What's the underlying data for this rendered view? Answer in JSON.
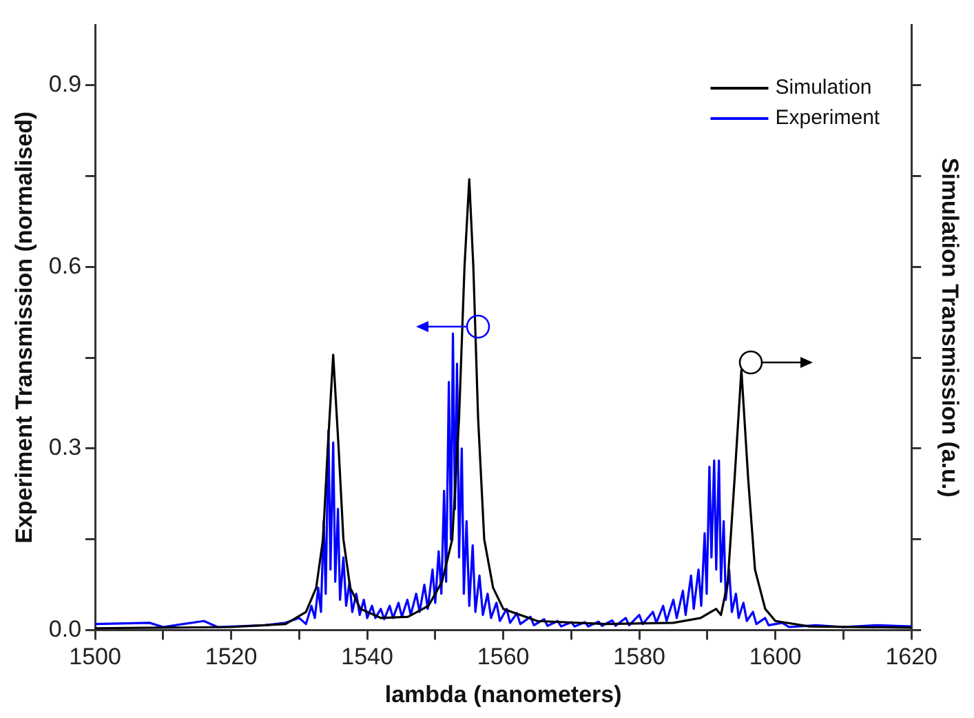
{
  "chart_data": {
    "type": "line",
    "xlabel": "lambda (nanometers)",
    "ylabel": "Experiment Transmission (normalised)",
    "y2label": "Simulation Transmission (a.u.)",
    "xlim": [
      1500,
      1620
    ],
    "xticks": [
      1500,
      {
        "value": 1510,
        "label": null
      },
      1520,
      {
        "value": 1530,
        "label": null
      },
      1540,
      {
        "value": 1550,
        "label": null
      },
      1560,
      {
        "value": 1570,
        "label": null
      },
      1580,
      {
        "value": 1590,
        "label": null
      },
      1600,
      {
        "value": 1610,
        "label": null
      },
      1620
    ],
    "ylim": [
      0,
      1.0
    ],
    "yticks": [
      {
        "value": 0,
        "label": "0.0"
      },
      {
        "value": 0.15,
        "label": null
      },
      {
        "value": 0.3,
        "label": "0.3"
      },
      {
        "value": 0.45,
        "label": null
      },
      {
        "value": 0.6,
        "label": "0.6"
      },
      {
        "value": 0.75,
        "label": null
      },
      {
        "value": 0.9,
        "label": "0.9"
      }
    ],
    "tick_labels": "xy",
    "grid": false,
    "legend": "top right",
    "marker": "none",
    "line_style": "solid",
    "series": [
      {
        "name": "Simulation",
        "color": "#000000",
        "x": [
          1500,
          1520,
          1528,
          1531,
          1532.5,
          1533.5,
          1534.2,
          1535,
          1535.8,
          1536.5,
          1537.5,
          1539,
          1542,
          1546,
          1549,
          1551,
          1552.5,
          1553.5,
          1554.3,
          1555,
          1555.6,
          1556.3,
          1557.2,
          1558.5,
          1560,
          1565,
          1575,
          1585,
          1589,
          1590.5,
          1591.3,
          1592,
          1593,
          1594,
          1595,
          1596,
          1597,
          1598.5,
          1600,
          1605,
          1620
        ],
        "values": [
          0.003,
          0.005,
          0.01,
          0.03,
          0.07,
          0.15,
          0.3,
          0.455,
          0.3,
          0.15,
          0.07,
          0.035,
          0.02,
          0.022,
          0.04,
          0.08,
          0.15,
          0.35,
          0.6,
          0.745,
          0.6,
          0.35,
          0.15,
          0.07,
          0.035,
          0.015,
          0.01,
          0.012,
          0.02,
          0.03,
          0.035,
          0.025,
          0.08,
          0.25,
          0.43,
          0.25,
          0.1,
          0.035,
          0.015,
          0.006,
          0.004
        ]
      },
      {
        "name": "Experiment",
        "color": "#0000ff",
        "x": [
          1500,
          1508,
          1510,
          1516,
          1518,
          1525,
          1528,
          1530,
          1531,
          1531.8,
          1532.3,
          1532.8,
          1533.2,
          1533.6,
          1533.9,
          1534.3,
          1534.6,
          1535,
          1535.3,
          1535.7,
          1536,
          1536.5,
          1536.9,
          1537.4,
          1537.8,
          1538.4,
          1538.9,
          1539.5,
          1540,
          1540.7,
          1541.2,
          1542,
          1542.5,
          1543.3,
          1543.8,
          1544.6,
          1545.1,
          1545.9,
          1546.4,
          1547.2,
          1547.7,
          1548.4,
          1548.9,
          1549.6,
          1550,
          1550.5,
          1550.9,
          1551.3,
          1551.6,
          1552,
          1552.3,
          1552.6,
          1552.9,
          1553.2,
          1553.5,
          1553.9,
          1554.2,
          1554.6,
          1555,
          1555.5,
          1555.9,
          1556.5,
          1557,
          1557.7,
          1558.2,
          1559,
          1559.5,
          1560.5,
          1561,
          1562,
          1562.5,
          1564,
          1564.5,
          1566,
          1566.5,
          1568,
          1568.5,
          1570,
          1570.5,
          1572,
          1572.5,
          1574,
          1574.5,
          1576,
          1576.5,
          1578,
          1578.5,
          1580,
          1580.5,
          1582,
          1582.5,
          1583.5,
          1584,
          1585,
          1585.5,
          1586.4,
          1586.8,
          1587.6,
          1588,
          1588.7,
          1589.1,
          1589.6,
          1589.9,
          1590.3,
          1590.6,
          1591,
          1591.3,
          1591.7,
          1592,
          1592.4,
          1592.7,
          1593.2,
          1593.6,
          1594.2,
          1594.6,
          1595.3,
          1595.8,
          1596.7,
          1597.2,
          1598.5,
          1599,
          1601,
          1602,
          1606,
          1610,
          1615,
          1620
        ],
        "values": [
          0.01,
          0.012,
          0.005,
          0.015,
          0.005,
          0.008,
          0.012,
          0.02,
          0.01,
          0.04,
          0.02,
          0.07,
          0.03,
          0.18,
          0.06,
          0.33,
          0.1,
          0.31,
          0.08,
          0.2,
          0.05,
          0.12,
          0.04,
          0.08,
          0.03,
          0.06,
          0.025,
          0.05,
          0.02,
          0.04,
          0.02,
          0.035,
          0.018,
          0.04,
          0.02,
          0.045,
          0.022,
          0.05,
          0.025,
          0.06,
          0.03,
          0.075,
          0.035,
          0.1,
          0.045,
          0.13,
          0.06,
          0.23,
          0.08,
          0.41,
          0.15,
          0.49,
          0.2,
          0.44,
          0.12,
          0.3,
          0.06,
          0.18,
          0.04,
          0.14,
          0.03,
          0.09,
          0.025,
          0.06,
          0.02,
          0.045,
          0.015,
          0.035,
          0.012,
          0.028,
          0.01,
          0.022,
          0.008,
          0.018,
          0.007,
          0.015,
          0.006,
          0.013,
          0.006,
          0.013,
          0.006,
          0.014,
          0.007,
          0.016,
          0.007,
          0.02,
          0.008,
          0.025,
          0.01,
          0.03,
          0.012,
          0.04,
          0.015,
          0.05,
          0.02,
          0.065,
          0.025,
          0.09,
          0.035,
          0.1,
          0.04,
          0.16,
          0.06,
          0.27,
          0.12,
          0.28,
          0.1,
          0.28,
          0.08,
          0.18,
          0.05,
          0.1,
          0.03,
          0.06,
          0.02,
          0.045,
          0.015,
          0.03,
          0.01,
          0.02,
          0.008,
          0.012,
          0.005,
          0.008,
          0.005,
          0.008,
          0.006
        ]
      }
    ]
  }
}
